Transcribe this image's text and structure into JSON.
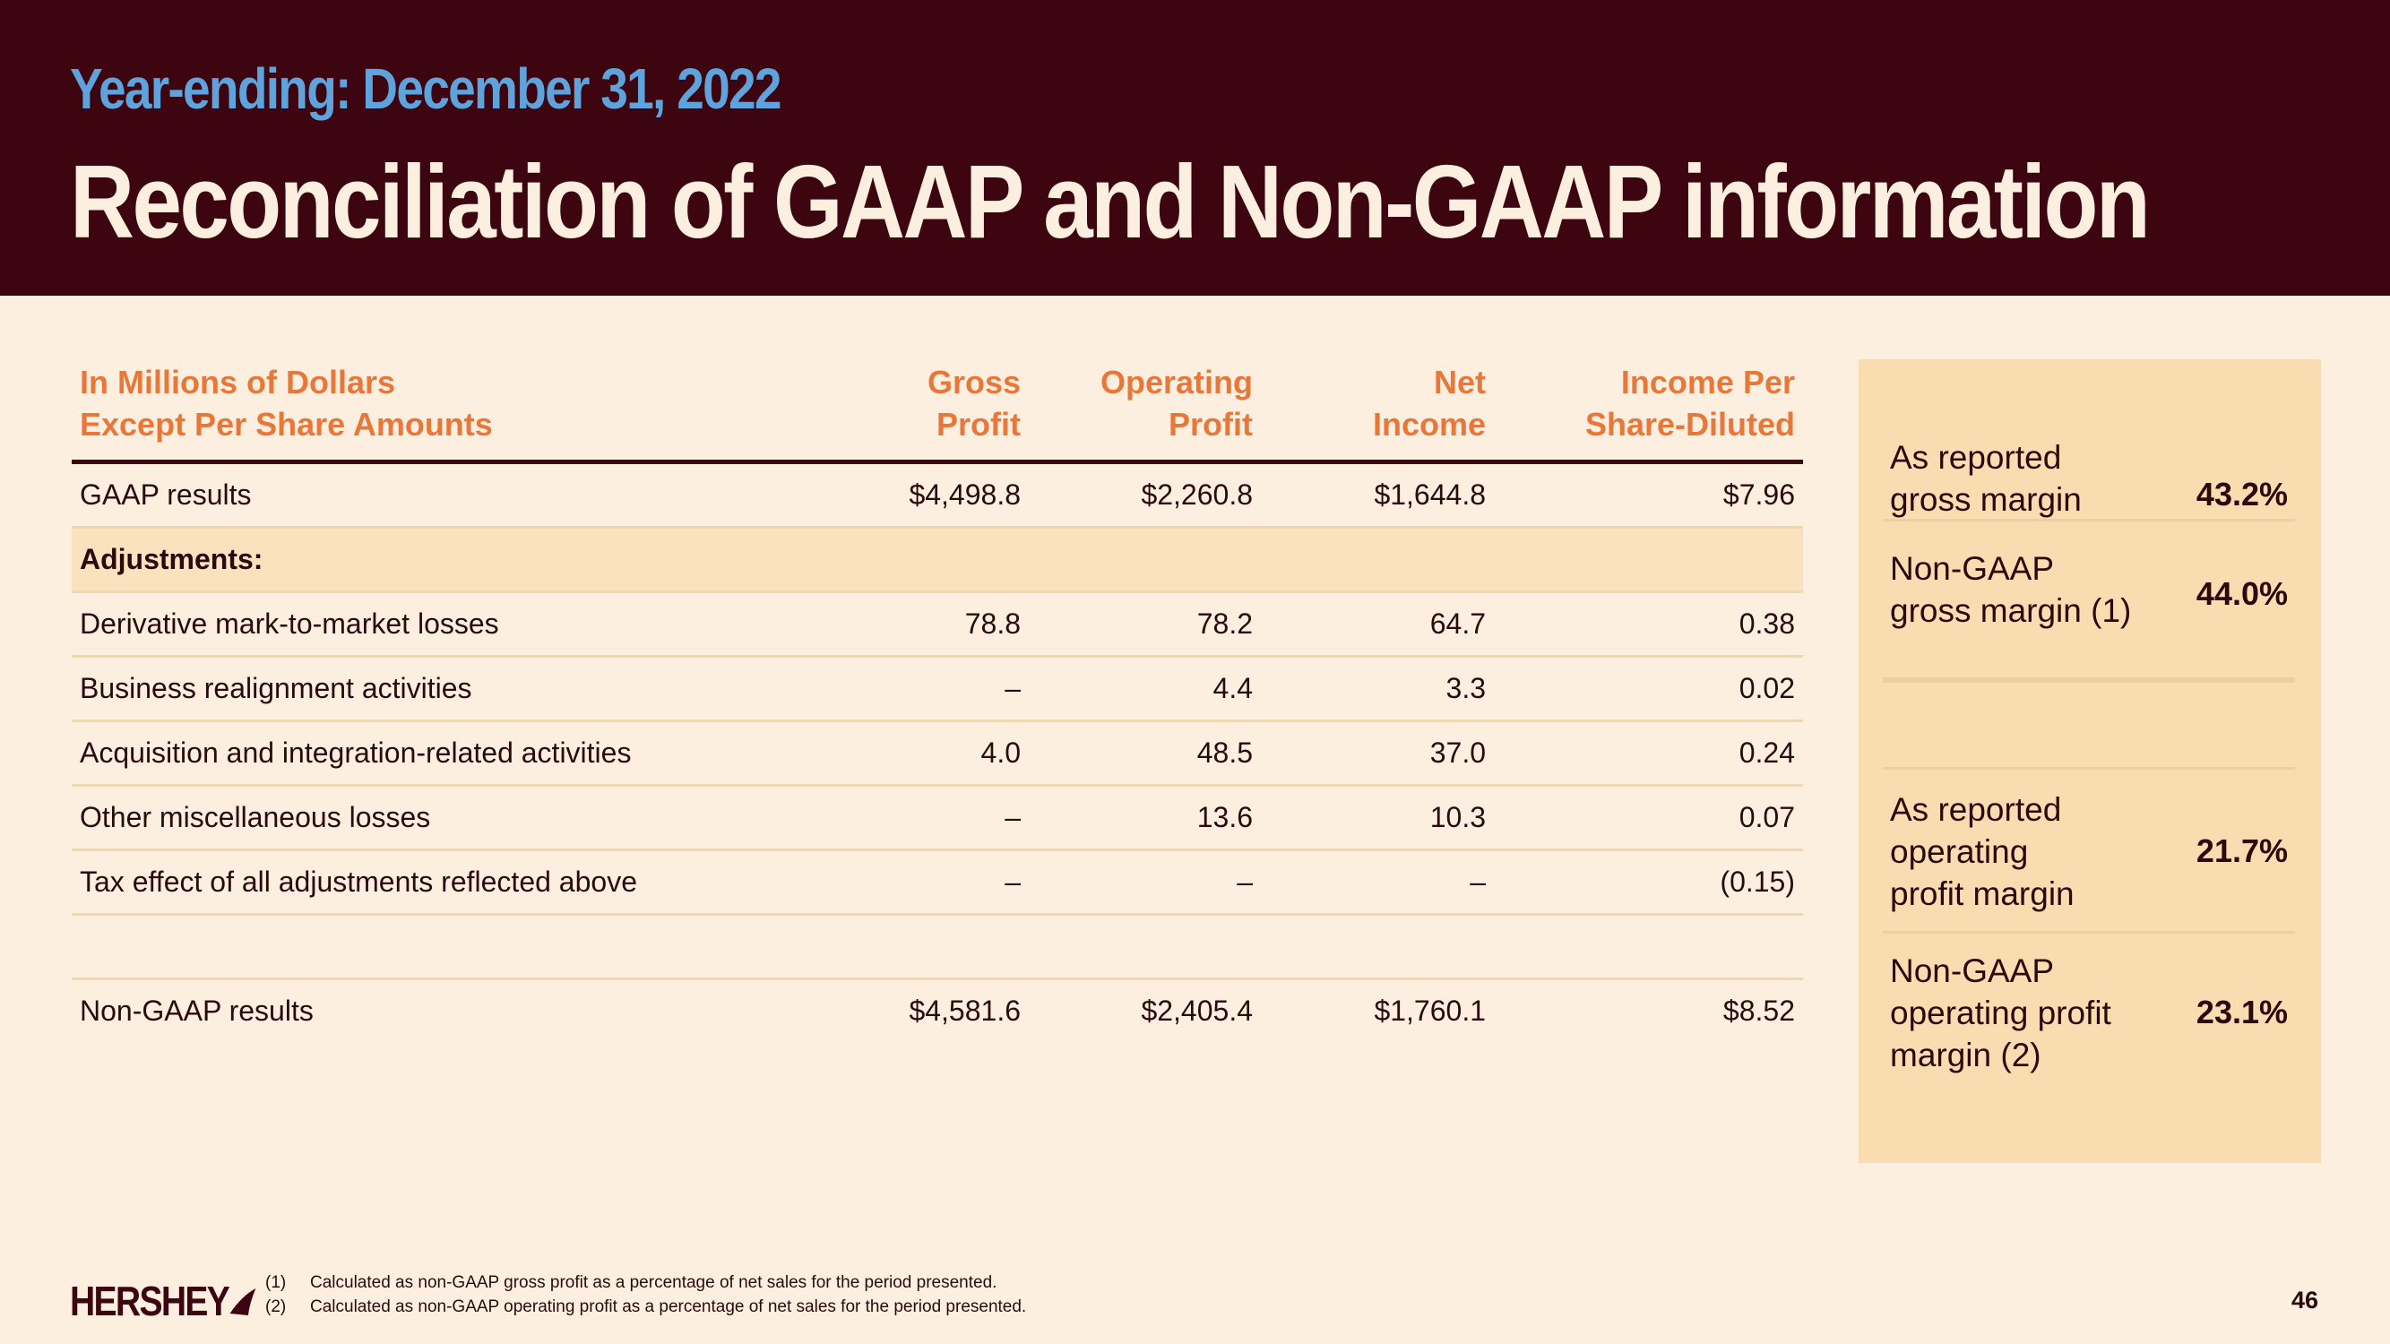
{
  "header": {
    "subtitle": "Year-ending: December 31, 2022",
    "title": "Reconciliation of GAAP and Non-GAAP information"
  },
  "table": {
    "headers": [
      "In Millions of Dollars\nExcept Per Share Amounts",
      "Gross\nProfit",
      "Operating\nProfit",
      "Net\nIncome",
      "Income Per\nShare-Diluted"
    ],
    "rows": [
      {
        "label": "GAAP results",
        "values": [
          "$4,498.8",
          "$2,260.8",
          "$1,644.8",
          "$7.96"
        ]
      },
      {
        "label": "Adjustments:",
        "values": [
          "",
          "",
          "",
          ""
        ]
      },
      {
        "label": "Derivative mark-to-market losses",
        "values": [
          "78.8",
          "78.2",
          "64.7",
          "0.38"
        ]
      },
      {
        "label": "Business realignment activities",
        "values": [
          "–",
          "4.4",
          "3.3",
          "0.02"
        ]
      },
      {
        "label": "Acquisition and integration-related activities",
        "values": [
          "4.0",
          "48.5",
          "37.0",
          "0.24"
        ]
      },
      {
        "label": "Other miscellaneous losses",
        "values": [
          "–",
          "13.6",
          "10.3",
          "0.07"
        ]
      },
      {
        "label": "Tax effect of all adjustments reflected above",
        "values": [
          "–",
          "–",
          "–",
          "(0.15)"
        ]
      },
      {
        "label": "Non-GAAP results",
        "values": [
          "$4,581.6",
          "$2,405.4",
          "$1,760.1",
          "$8.52"
        ]
      }
    ]
  },
  "panel": {
    "items": [
      {
        "label": "As reported\ngross margin",
        "value": "43.2%"
      },
      {
        "label": "Non-GAAP\ngross margin (1)",
        "value": "44.0%"
      },
      {
        "label": "As reported\noperating\nprofit margin",
        "value": "21.7%"
      },
      {
        "label": "Non-GAAP\noperating profit\nmargin (2)",
        "value": "23.1%"
      }
    ]
  },
  "footer": {
    "logo": "HERSHEY",
    "notes": [
      {
        "num": "(1)",
        "text": "Calculated as non-GAAP gross profit as a percentage of net sales for the period presented."
      },
      {
        "num": "(2)",
        "text": "Calculated as non-GAAP operating profit as a percentage of net sales for the period presented."
      }
    ],
    "page_number": "46"
  },
  "colors": {
    "header_bg": "#3d0510",
    "subtitle": "#5fa3dd",
    "accent_orange": "#e8773a",
    "page_bg": "#fcefe0",
    "panel_bg": "#f9ddb0"
  }
}
